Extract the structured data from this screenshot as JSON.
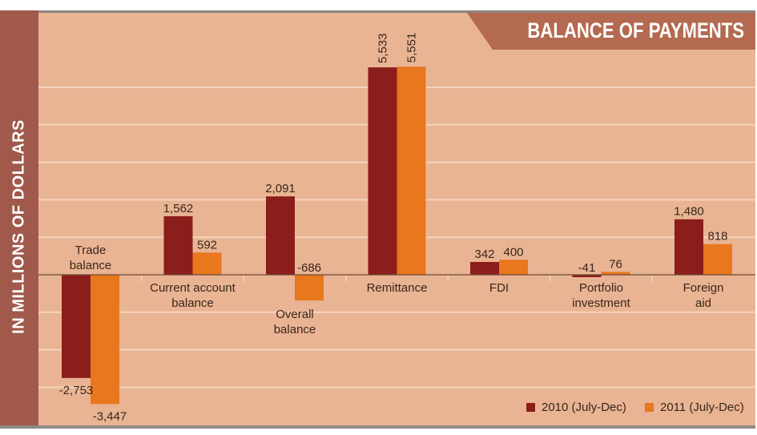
{
  "chart_data": {
    "type": "bar",
    "title": "BALANCE OF PAYMENTS",
    "ylabel": "IN MILLIONS OF DOLLARS",
    "xlabel": "",
    "ylim": [
      -4000,
      6000
    ],
    "grid": true,
    "legend_position": "bottom-right",
    "categories": [
      [
        "Trade",
        "balance"
      ],
      [
        "Current account",
        "balance"
      ],
      [
        "Overall",
        "balance"
      ],
      [
        "Remittance"
      ],
      [
        "FDI"
      ],
      [
        "Portfolio",
        "investment"
      ],
      [
        "Foreign",
        "aid"
      ]
    ],
    "series": [
      {
        "name": "2010 (July-Dec)",
        "color": "#8b1e1a",
        "values": [
          -2753,
          1562,
          2091,
          5533,
          342,
          -41,
          1480
        ],
        "labels": [
          "-2,753",
          "1,562",
          "2,091",
          "5,533",
          "342",
          "-41",
          "1,480"
        ]
      },
      {
        "name": "2011 (July-Dec)",
        "color": "#e8771e",
        "values": [
          -3447,
          592,
          -686,
          5551,
          400,
          76,
          818
        ],
        "labels": [
          "-3,447",
          "592",
          "-686",
          "5,551",
          "400",
          "76",
          "818"
        ]
      }
    ]
  },
  "colors": {
    "background": "#e9b494",
    "gridline": "#f6d3bd",
    "band": "#a0594a",
    "title_box": "#b46a50",
    "text": "#3a2618"
  }
}
